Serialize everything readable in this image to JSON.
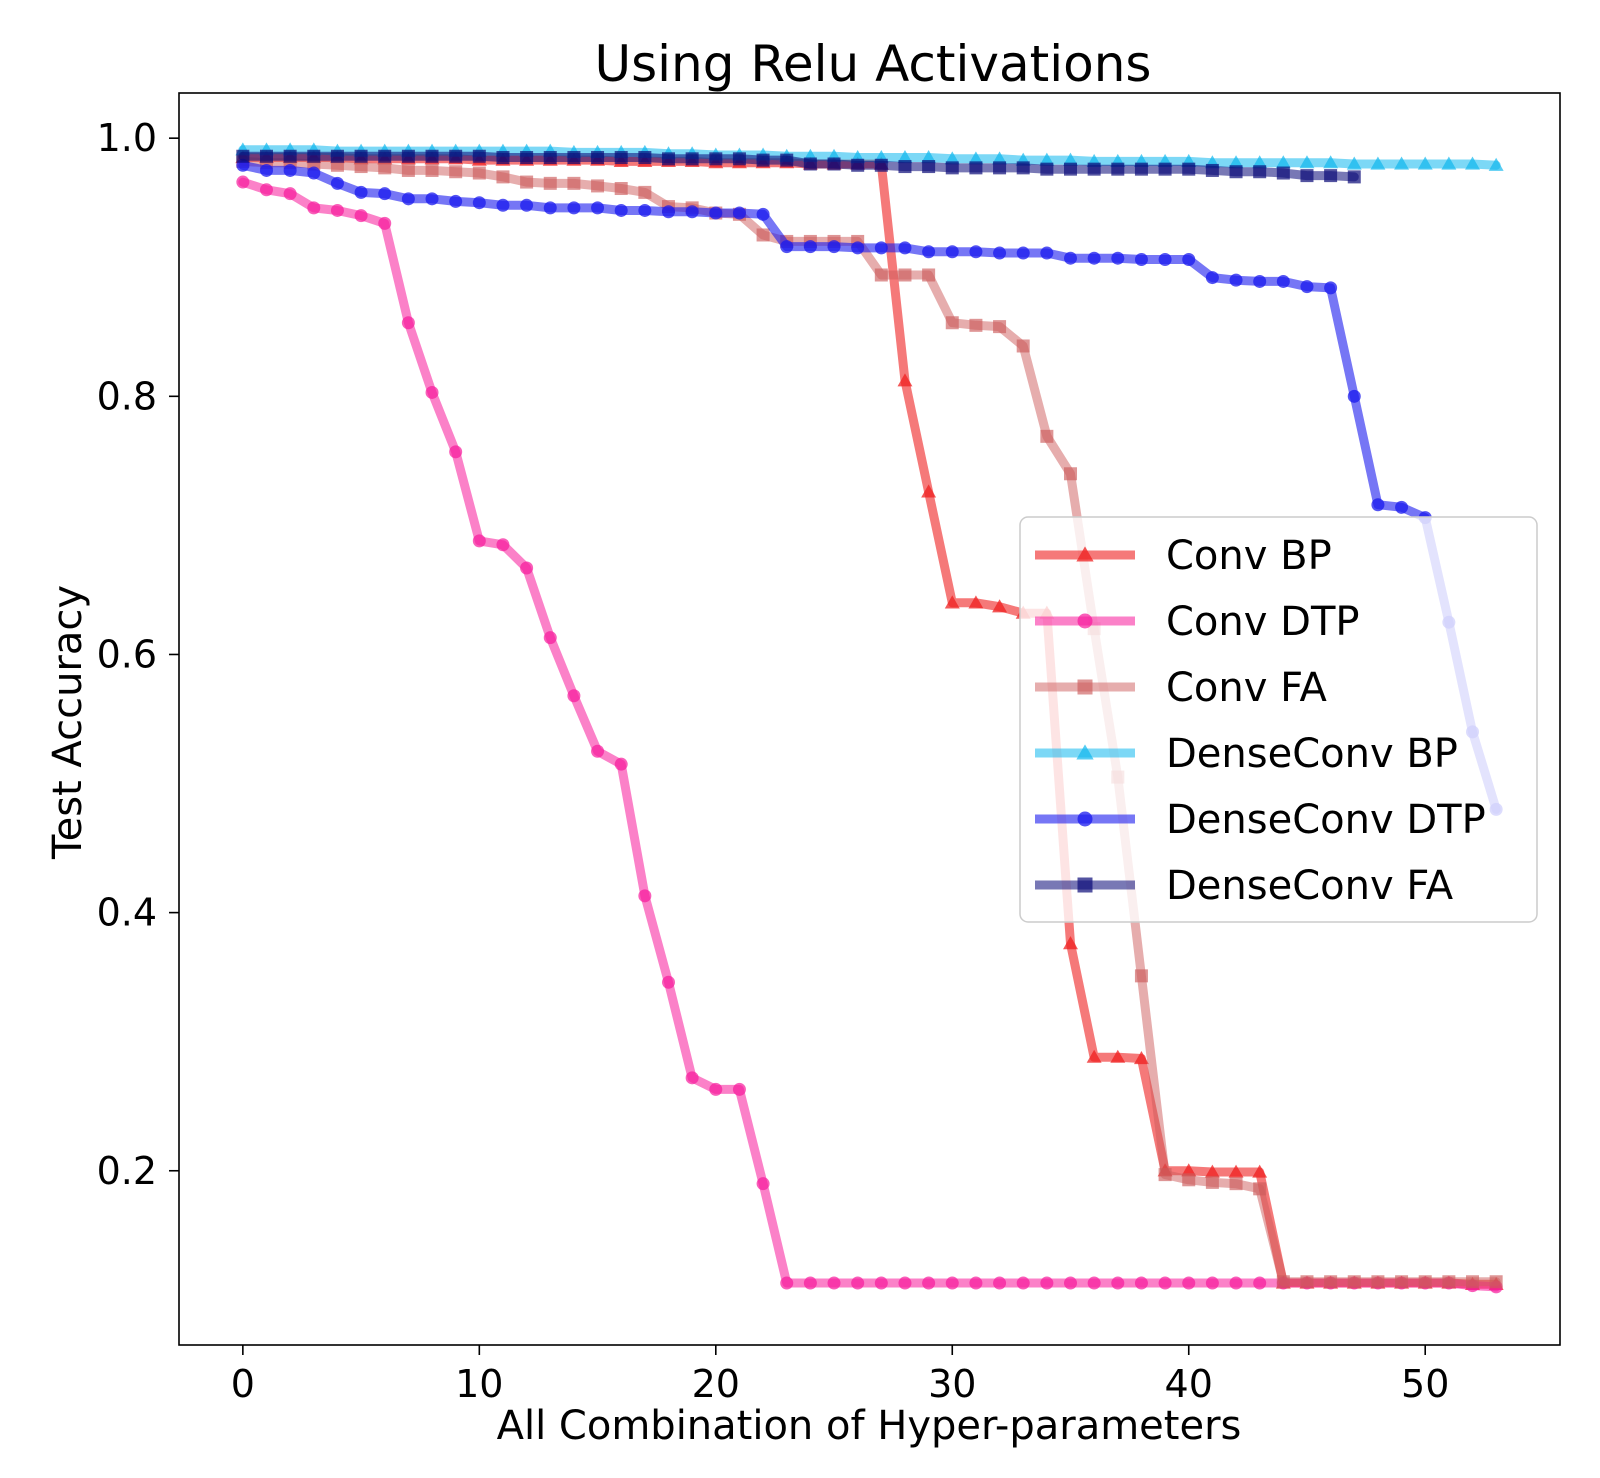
{
  "chart_data": {
    "type": "line",
    "title": "Using Relu Activations",
    "xlabel": "All Combination of Hyper-parameters",
    "ylabel": "Test Accuracy",
    "xlim": [
      -2.7,
      55.7
    ],
    "ylim": [
      0.065,
      1.035
    ],
    "xticks": [
      0,
      10,
      20,
      30,
      40,
      50
    ],
    "xtick_labels": [
      "0",
      "10",
      "20",
      "30",
      "40",
      "50"
    ],
    "yticks": [
      0.2,
      0.4,
      0.6,
      0.8,
      1.0
    ],
    "ytick_labels": [
      "0.2",
      "0.4",
      "0.6",
      "0.8",
      "1.0"
    ],
    "legend_position": "center-right",
    "series": [
      {
        "name": "Conv BP",
        "color": "#ef2020",
        "alpha": 0.6,
        "marker": "triangle",
        "x": [
          0,
          1,
          2,
          3,
          4,
          5,
          6,
          7,
          8,
          9,
          10,
          11,
          12,
          13,
          14,
          15,
          16,
          17,
          18,
          19,
          20,
          21,
          22,
          23,
          24,
          25,
          26,
          27,
          28,
          29,
          30,
          31,
          32,
          33,
          34,
          35,
          36,
          37,
          38,
          39,
          40,
          41,
          42,
          43,
          44,
          45,
          46,
          47,
          48,
          49,
          50,
          51,
          52,
          53
        ],
        "values": [
          0.985,
          0.985,
          0.985,
          0.985,
          0.985,
          0.984,
          0.984,
          0.984,
          0.984,
          0.984,
          0.983,
          0.983,
          0.983,
          0.983,
          0.983,
          0.983,
          0.982,
          0.982,
          0.982,
          0.982,
          0.981,
          0.981,
          0.981,
          0.981,
          0.98,
          0.98,
          0.98,
          0.98,
          0.812,
          0.726,
          0.64,
          0.64,
          0.637,
          0.632,
          0.632,
          0.376,
          0.288,
          0.288,
          0.287,
          0.2,
          0.2,
          0.199,
          0.199,
          0.199,
          0.113,
          0.113,
          0.113,
          0.113,
          0.113,
          0.113,
          0.113,
          0.113,
          0.112,
          0.112
        ]
      },
      {
        "name": "Conv DTP",
        "color": "#f7199b",
        "alpha": 0.55,
        "marker": "circle",
        "x": [
          0,
          1,
          2,
          3,
          4,
          5,
          6,
          7,
          8,
          9,
          10,
          11,
          12,
          13,
          14,
          15,
          16,
          17,
          18,
          19,
          20,
          21,
          22,
          23,
          24,
          25,
          26,
          27,
          28,
          29,
          30,
          31,
          32,
          33,
          34,
          35,
          36,
          37,
          38,
          39,
          40,
          41,
          42,
          43,
          44,
          45,
          46,
          47,
          48,
          49,
          50,
          51,
          52,
          53
        ],
        "values": [
          0.966,
          0.96,
          0.957,
          0.946,
          0.944,
          0.94,
          0.934,
          0.857,
          0.803,
          0.757,
          0.688,
          0.685,
          0.667,
          0.613,
          0.568,
          0.525,
          0.515,
          0.413,
          0.346,
          0.272,
          0.263,
          0.263,
          0.19,
          0.113,
          0.113,
          0.113,
          0.113,
          0.113,
          0.113,
          0.113,
          0.113,
          0.113,
          0.113,
          0.113,
          0.113,
          0.113,
          0.113,
          0.113,
          0.113,
          0.113,
          0.113,
          0.113,
          0.113,
          0.113,
          0.113,
          0.113,
          0.113,
          0.113,
          0.113,
          0.113,
          0.113,
          0.113,
          0.111,
          0.11
        ]
      },
      {
        "name": "Conv FA",
        "color": "#cd5c5c",
        "alpha": 0.5,
        "marker": "square",
        "x": [
          0,
          1,
          2,
          3,
          4,
          5,
          6,
          7,
          8,
          9,
          10,
          11,
          12,
          13,
          14,
          15,
          16,
          17,
          18,
          19,
          20,
          21,
          22,
          23,
          24,
          25,
          26,
          27,
          28,
          29,
          30,
          31,
          32,
          33,
          34,
          35,
          36,
          37,
          38,
          39,
          40,
          41,
          42,
          43,
          44,
          45,
          46,
          47,
          48,
          49,
          50,
          51,
          52,
          53
        ],
        "values": [
          0.982,
          0.981,
          0.981,
          0.98,
          0.979,
          0.978,
          0.977,
          0.975,
          0.975,
          0.974,
          0.973,
          0.97,
          0.966,
          0.965,
          0.965,
          0.963,
          0.961,
          0.958,
          0.947,
          0.946,
          0.942,
          0.941,
          0.925,
          0.92,
          0.92,
          0.92,
          0.92,
          0.894,
          0.894,
          0.894,
          0.857,
          0.855,
          0.854,
          0.839,
          0.769,
          0.74,
          0.62,
          0.505,
          0.351,
          0.197,
          0.193,
          0.191,
          0.19,
          0.186,
          0.114,
          0.114,
          0.114,
          0.114,
          0.114,
          0.114,
          0.114,
          0.114,
          0.114,
          0.114
        ]
      },
      {
        "name": "DenseConv BP",
        "color": "#11b8ee",
        "alpha": 0.55,
        "marker": "triangle",
        "x": [
          0,
          1,
          2,
          3,
          4,
          5,
          6,
          7,
          8,
          9,
          10,
          11,
          12,
          13,
          14,
          15,
          16,
          17,
          18,
          19,
          20,
          21,
          22,
          23,
          24,
          25,
          26,
          27,
          28,
          29,
          30,
          31,
          32,
          33,
          34,
          35,
          36,
          37,
          38,
          39,
          40,
          41,
          42,
          43,
          44,
          45,
          46,
          47,
          48,
          49,
          50,
          51,
          52,
          53
        ],
        "values": [
          0.991,
          0.991,
          0.991,
          0.991,
          0.99,
          0.99,
          0.99,
          0.99,
          0.99,
          0.99,
          0.99,
          0.99,
          0.99,
          0.99,
          0.989,
          0.989,
          0.989,
          0.989,
          0.988,
          0.988,
          0.987,
          0.987,
          0.987,
          0.986,
          0.986,
          0.986,
          0.985,
          0.985,
          0.985,
          0.985,
          0.984,
          0.984,
          0.984,
          0.983,
          0.983,
          0.983,
          0.982,
          0.982,
          0.982,
          0.982,
          0.982,
          0.981,
          0.981,
          0.981,
          0.981,
          0.981,
          0.981,
          0.98,
          0.98,
          0.98,
          0.98,
          0.98,
          0.98,
          0.979
        ]
      },
      {
        "name": "DenseConv DTP",
        "color": "#1a1aee",
        "alpha": 0.6,
        "marker": "circle",
        "x": [
          0,
          1,
          2,
          3,
          4,
          5,
          6,
          7,
          8,
          9,
          10,
          11,
          12,
          13,
          14,
          15,
          16,
          17,
          18,
          19,
          20,
          21,
          22,
          23,
          24,
          25,
          26,
          27,
          28,
          29,
          30,
          31,
          32,
          33,
          34,
          35,
          36,
          37,
          38,
          39,
          40,
          41,
          42,
          43,
          44,
          45,
          46,
          47,
          48,
          49,
          50,
          51,
          52,
          53
        ],
        "values": [
          0.979,
          0.975,
          0.975,
          0.973,
          0.965,
          0.958,
          0.957,
          0.953,
          0.953,
          0.951,
          0.95,
          0.948,
          0.948,
          0.946,
          0.946,
          0.946,
          0.944,
          0.944,
          0.943,
          0.943,
          0.942,
          0.942,
          0.941,
          0.916,
          0.916,
          0.916,
          0.915,
          0.915,
          0.915,
          0.912,
          0.912,
          0.912,
          0.911,
          0.911,
          0.911,
          0.907,
          0.907,
          0.907,
          0.906,
          0.906,
          0.906,
          0.892,
          0.89,
          0.889,
          0.889,
          0.885,
          0.884,
          0.8,
          0.716,
          0.714,
          0.706,
          0.625,
          0.54,
          0.48
        ]
      },
      {
        "name": "DenseConv FA",
        "color": "#0a0a78",
        "alpha": 0.55,
        "marker": "square",
        "x": [
          0,
          1,
          2,
          3,
          4,
          5,
          6,
          7,
          8,
          9,
          10,
          11,
          12,
          13,
          14,
          15,
          16,
          17,
          18,
          19,
          20,
          21,
          22,
          23,
          24,
          25,
          26,
          27,
          28,
          29,
          30,
          31,
          32,
          33,
          34,
          35,
          36,
          37,
          38,
          39,
          40,
          41,
          42,
          43,
          44,
          45,
          46,
          47
        ],
        "values": [
          0.986,
          0.986,
          0.986,
          0.986,
          0.986,
          0.986,
          0.986,
          0.986,
          0.986,
          0.986,
          0.986,
          0.985,
          0.985,
          0.985,
          0.985,
          0.985,
          0.985,
          0.985,
          0.984,
          0.984,
          0.984,
          0.984,
          0.983,
          0.983,
          0.98,
          0.98,
          0.979,
          0.979,
          0.978,
          0.978,
          0.977,
          0.977,
          0.977,
          0.977,
          0.976,
          0.976,
          0.976,
          0.976,
          0.976,
          0.976,
          0.976,
          0.975,
          0.974,
          0.974,
          0.973,
          0.971,
          0.971,
          0.97
        ]
      }
    ]
  }
}
